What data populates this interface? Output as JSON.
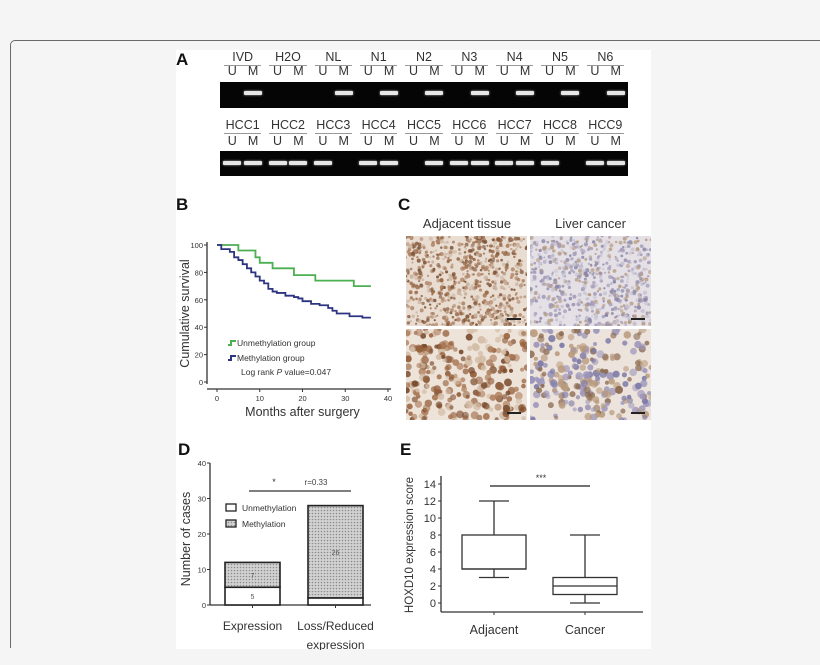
{
  "panels": {
    "A": {
      "letter": "A",
      "row1": {
        "samples": [
          "IVD",
          "H2O",
          "NL",
          "N1",
          "N2",
          "N3",
          "N4",
          "N5",
          "N6"
        ],
        "lane_labels": [
          "U",
          "M"
        ],
        "bands": [
          [
            0,
            1
          ],
          [
            0,
            0
          ],
          [
            0,
            1
          ],
          [
            0,
            1
          ],
          [
            0,
            1
          ],
          [
            0,
            1
          ],
          [
            0,
            1
          ],
          [
            0,
            1
          ],
          [
            0,
            1
          ]
        ]
      },
      "row2": {
        "samples": [
          "HCC1",
          "HCC2",
          "HCC3",
          "HCC4",
          "HCC5",
          "HCC6",
          "HCC7",
          "HCC8",
          "HCC9"
        ],
        "lane_labels": [
          "U",
          "M"
        ],
        "bands": [
          [
            1,
            1
          ],
          [
            1,
            1
          ],
          [
            1,
            0
          ],
          [
            1,
            1
          ],
          [
            0,
            1
          ],
          [
            1,
            1
          ],
          [
            1,
            1
          ],
          [
            1,
            0
          ],
          [
            1,
            1
          ]
        ]
      }
    },
    "B": {
      "letter": "B"
    },
    "C": {
      "letter": "C",
      "col_left": "Adjacent tissue",
      "col_right": "Liver cancer"
    },
    "D": {
      "letter": "D"
    },
    "E": {
      "letter": "E"
    }
  },
  "colors": {
    "unmethylation_curve": "#4caf50",
    "methylation_curve": "#2e3580",
    "gel_background": "#050505",
    "band": "#e6e6e6",
    "adjacent_stain": "#9a6a48",
    "cancer_stain": "#8a86a8"
  },
  "chart_data": [
    {
      "panel": "B",
      "type": "line",
      "title": "",
      "xlabel": "Months after surgery",
      "ylabel": "Cumulative survival",
      "xlim": [
        0,
        40
      ],
      "ylim": [
        0,
        100
      ],
      "xticks": [
        0,
        10,
        20,
        30,
        40
      ],
      "yticks": [
        0,
        20,
        40,
        60,
        80,
        100
      ],
      "series": [
        {
          "name": "Unmethylation group",
          "step": true,
          "x": [
            0,
            5,
            9,
            10,
            13,
            18,
            23,
            32,
            36
          ],
          "y": [
            100,
            96,
            91,
            87,
            83,
            78,
            74,
            70,
            70
          ]
        },
        {
          "name": "Methylation group",
          "step": true,
          "x": [
            0,
            1,
            3,
            4,
            5,
            6,
            7,
            8,
            9,
            10,
            11,
            12,
            13,
            14,
            16,
            18,
            19,
            20,
            22,
            24,
            26,
            27,
            28,
            31,
            34,
            36
          ],
          "y": [
            100,
            97,
            95,
            91,
            89,
            86,
            83,
            80,
            77,
            74,
            72,
            68,
            66,
            65,
            63,
            62,
            61,
            59,
            57,
            56,
            54,
            52,
            50,
            48,
            47,
            47
          ]
        }
      ],
      "legend": [
        "Unmethylation group",
        "Methylation group"
      ],
      "annotation": "Log rank P value=0.047",
      "grid": false
    },
    {
      "panel": "D",
      "type": "bar",
      "stacked": true,
      "title": "",
      "xlabel": "",
      "ylabel": "Number of cases",
      "ylim": [
        0,
        40
      ],
      "yticks": [
        0,
        10,
        20,
        30,
        40
      ],
      "categories": [
        "Expression",
        "Loss/Reduced expression"
      ],
      "series": [
        {
          "name": "Unmethylation",
          "values": [
            5,
            2
          ]
        },
        {
          "name": "Methylation",
          "values": [
            7,
            26
          ]
        }
      ],
      "legend": [
        "Unmethylation",
        "Methylation"
      ],
      "annotation": {
        "significance": "*",
        "r": "r=0.33"
      },
      "bar_labels": {
        "Expression": [
          "5",
          "7"
        ],
        "Loss/Reduced expression": [
          "2",
          "26"
        ]
      }
    },
    {
      "panel": "E",
      "type": "box",
      "title": "",
      "xlabel": "",
      "ylabel": "HOXD10 expression score",
      "ylim": [
        0,
        14
      ],
      "yticks": [
        0,
        2,
        4,
        6,
        8,
        10,
        12,
        14
      ],
      "categories": [
        "Adjacent",
        "Cancer"
      ],
      "boxes": [
        {
          "name": "Adjacent",
          "min": 3,
          "q1": 4,
          "median": 4,
          "q3": 8,
          "max": 12
        },
        {
          "name": "Cancer",
          "min": 0,
          "q1": 1,
          "median": 2,
          "q3": 3,
          "max": 8
        }
      ],
      "annotation": "***"
    }
  ]
}
